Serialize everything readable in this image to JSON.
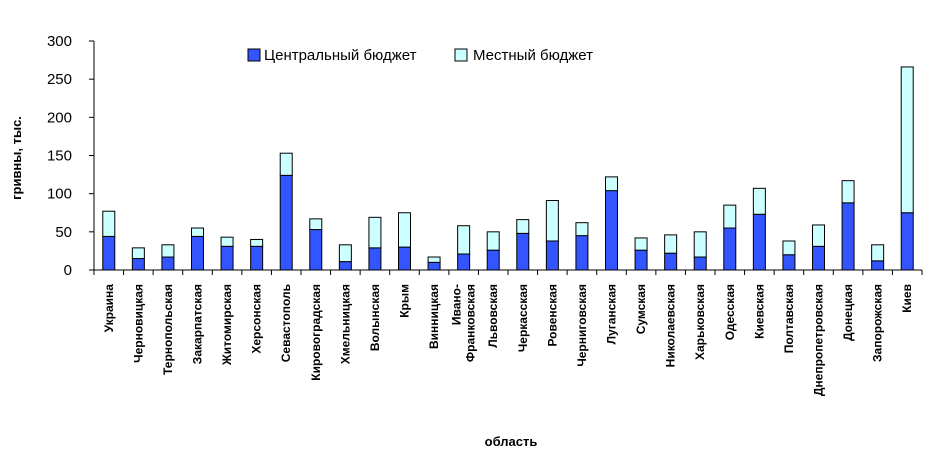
{
  "chart_data": {
    "type": "bar",
    "stacked": true,
    "title": "",
    "xlabel": "область",
    "ylabel": "гривны, тыс.",
    "ylim": [
      0,
      300
    ],
    "yticks": [
      0,
      50,
      100,
      150,
      200,
      250,
      300
    ],
    "grid": false,
    "legend_position": "top",
    "categories": [
      "Украина",
      "Черновицкая",
      "Тернопольская",
      "Закарпатская",
      "Житомирская",
      "Херсонская",
      "Севастополь",
      "Кировоградская",
      "Хмельницкая",
      "Волынская",
      "Крым",
      "Винницкая",
      "Ивано-Франковская",
      "Львовская",
      "Черкасская",
      "Ровенская",
      "Черниговская",
      "Луганская",
      "Сумская",
      "Николаевская",
      "Харьковская",
      "Одесская",
      "Киевская",
      "Полтавская",
      "Днепропетровская",
      "Донецкая",
      "Запорожская",
      "Киев"
    ],
    "series": [
      {
        "name": "Центральный бюджет",
        "color": "#3355ff",
        "values": [
          44,
          15,
          17,
          44,
          31,
          31,
          124,
          53,
          11,
          29,
          30,
          10,
          21,
          26,
          48,
          38,
          45,
          104,
          26,
          22,
          17,
          55,
          73,
          20,
          31,
          88,
          12,
          75
        ]
      },
      {
        "name": "Местный бюджет",
        "color": "#ccffff",
        "values": [
          33,
          14,
          16,
          11,
          12,
          9,
          29,
          14,
          22,
          40,
          45,
          7,
          37,
          24,
          18,
          53,
          17,
          18,
          16,
          24,
          33,
          30,
          34,
          18,
          28,
          29,
          21,
          191
        ]
      }
    ]
  }
}
